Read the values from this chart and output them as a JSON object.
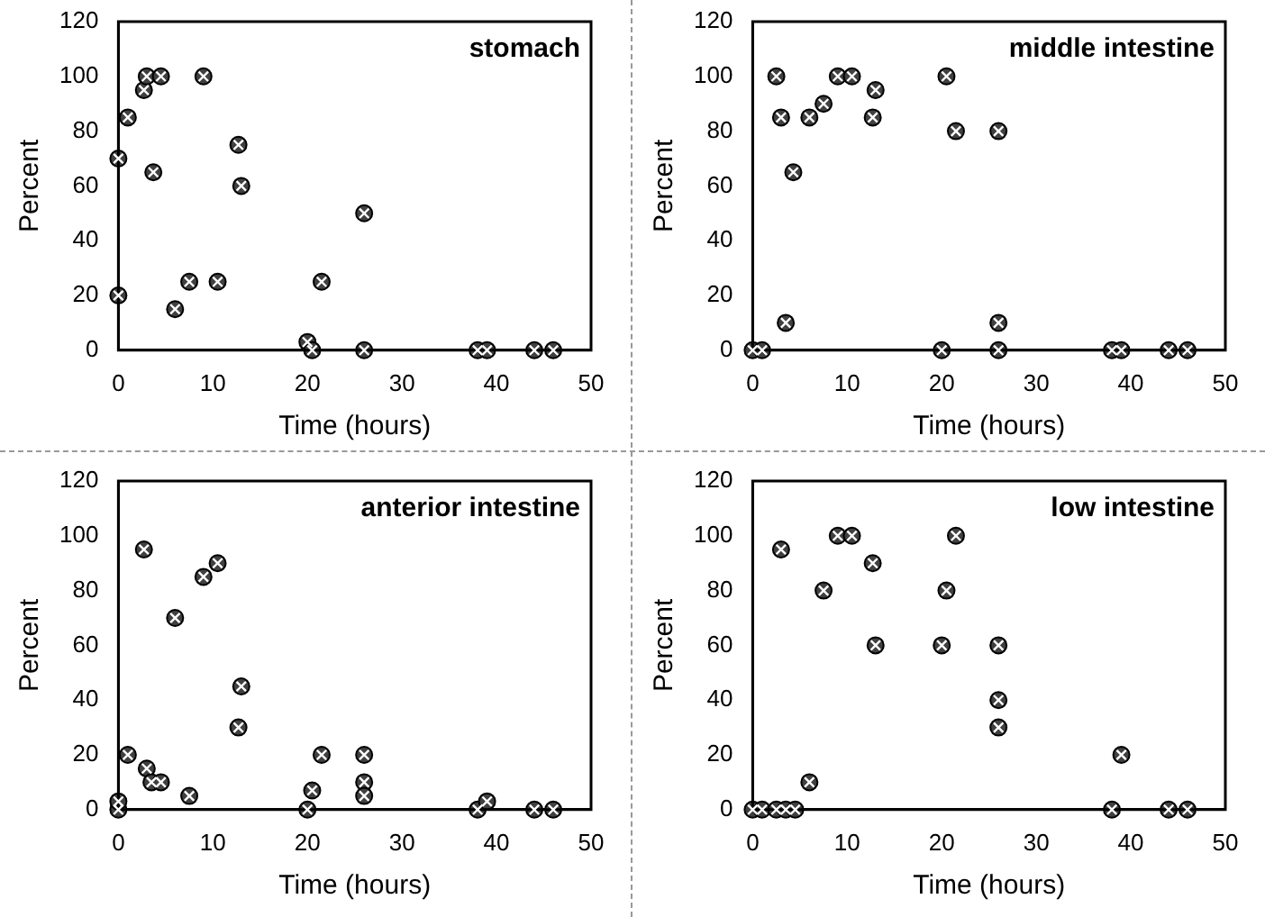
{
  "chart_data": [
    {
      "type": "scatter",
      "title": "stomach",
      "xlabel": "Time (hours)",
      "ylabel": "Percent",
      "xlim": [
        0,
        50
      ],
      "xticks": [
        0,
        10,
        20,
        30,
        40,
        50
      ],
      "ylim": [
        0,
        120
      ],
      "yticks": [
        0,
        20,
        40,
        60,
        80,
        100,
        120
      ],
      "grid": false,
      "legend": false,
      "marker": "circle",
      "series": [
        {
          "color": "#404040",
          "x": [
            0,
            0,
            1,
            2.7,
            3,
            3.7,
            4.5,
            6,
            7.5,
            9,
            10.5,
            12.7,
            13,
            20,
            20.5,
            21.5,
            26,
            26,
            38,
            39,
            44,
            46
          ],
          "values": [
            20,
            70,
            85,
            95,
            100,
            65,
            100,
            15,
            25,
            100,
            25,
            75,
            60,
            3,
            0,
            25,
            50,
            0,
            0,
            0,
            0,
            0
          ]
        }
      ]
    },
    {
      "type": "scatter",
      "title": "middle intestine",
      "xlabel": "Time (hours)",
      "ylabel": "Percent",
      "xlim": [
        0,
        50
      ],
      "xticks": [
        0,
        10,
        20,
        30,
        40,
        50
      ],
      "ylim": [
        0,
        120
      ],
      "yticks": [
        0,
        20,
        40,
        60,
        80,
        100,
        120
      ],
      "grid": false,
      "legend": false,
      "marker": "circle",
      "series": [
        {
          "color": "#404040",
          "x": [
            0,
            1,
            2.5,
            3,
            3.5,
            4.3,
            6,
            7.5,
            9,
            10.5,
            12.7,
            13,
            20,
            20.5,
            21.5,
            26,
            26,
            26,
            38,
            39,
            44,
            46
          ],
          "values": [
            0,
            0,
            100,
            85,
            10,
            65,
            85,
            90,
            100,
            100,
            85,
            95,
            0,
            100,
            80,
            80,
            10,
            0,
            0,
            0,
            0,
            0
          ]
        }
      ]
    },
    {
      "type": "scatter",
      "title": "anterior intestine",
      "xlabel": "Time (hours)",
      "ylabel": "Percent",
      "xlim": [
        0,
        50
      ],
      "xticks": [
        0,
        10,
        20,
        30,
        40,
        50
      ],
      "ylim": [
        0,
        120
      ],
      "yticks": [
        0,
        20,
        40,
        60,
        80,
        100,
        120
      ],
      "grid": false,
      "legend": false,
      "marker": "circle",
      "series": [
        {
          "color": "#404040",
          "x": [
            0,
            0,
            1,
            2.7,
            3,
            3.5,
            4.5,
            6,
            7.5,
            9,
            10.5,
            12.7,
            13,
            20,
            20.5,
            21.5,
            26,
            26,
            26,
            38,
            39,
            44,
            46
          ],
          "values": [
            0,
            3,
            20,
            95,
            15,
            10,
            10,
            70,
            5,
            85,
            90,
            30,
            45,
            0,
            7,
            20,
            20,
            10,
            5,
            0,
            3,
            0,
            0
          ]
        }
      ]
    },
    {
      "type": "scatter",
      "title": "low intestine",
      "xlabel": "Time (hours)",
      "ylabel": "Percent",
      "xlim": [
        0,
        50
      ],
      "xticks": [
        0,
        10,
        20,
        30,
        40,
        50
      ],
      "ylim": [
        0,
        120
      ],
      "yticks": [
        0,
        20,
        40,
        60,
        80,
        100,
        120
      ],
      "grid": false,
      "legend": false,
      "marker": "circle",
      "series": [
        {
          "color": "#404040",
          "x": [
            0,
            1,
            2.5,
            3,
            3.5,
            4.5,
            6,
            7.5,
            9,
            10.5,
            12.7,
            13,
            20,
            20.5,
            21.5,
            26,
            26,
            26,
            38,
            39,
            44,
            46
          ],
          "values": [
            0,
            0,
            0,
            95,
            0,
            0,
            10,
            80,
            100,
            100,
            90,
            60,
            60,
            80,
            100,
            60,
            40,
            30,
            0,
            20,
            0,
            0
          ]
        }
      ]
    }
  ]
}
